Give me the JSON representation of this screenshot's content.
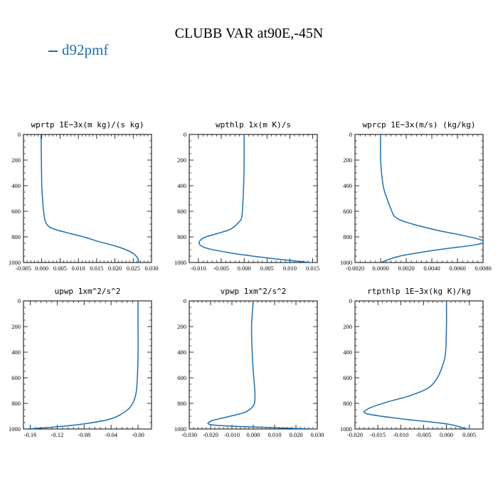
{
  "title": "CLUBB VAR at90E,-45N",
  "legend": {
    "series_name": "d92pmf",
    "color": "#1f6fb0"
  },
  "chart_data": [
    {
      "type": "line",
      "title": "wprtp   1E−3x(m kg)/(s kg)",
      "xlim": [
        -0.005,
        0.03
      ],
      "ylim": [
        1000,
        0
      ],
      "y_reversed": true,
      "xticks": [
        -0.005,
        0.0,
        0.005,
        0.01,
        0.015,
        0.02,
        0.025,
        0.03
      ],
      "xtick_labels": [
        "-0.005",
        "0.000",
        "0.005",
        "0.010",
        "0.015",
        "0.020",
        "0.025",
        "0.030"
      ],
      "yticks": [
        0,
        200,
        400,
        600,
        800,
        1000
      ],
      "ytick_labels": [
        "0",
        "200",
        "400",
        "600",
        "800",
        "1000"
      ],
      "series": [
        {
          "name": "d92pmf",
          "x": [
            -0.0002,
            -0.0001,
            0.0,
            0.0002,
            0.0005,
            0.001,
            0.002,
            0.004,
            0.008,
            0.012,
            0.016,
            0.02,
            0.023,
            0.025,
            0.0262,
            0.0265
          ],
          "y": [
            0,
            200,
            400,
            500,
            600,
            680,
            720,
            745,
            775,
            805,
            840,
            870,
            900,
            930,
            965,
            1000
          ]
        }
      ]
    },
    {
      "type": "line",
      "title": "wpthlp   1x(m K)/s",
      "xlim": [
        -0.012,
        0.016
      ],
      "ylim": [
        1000,
        0
      ],
      "y_reversed": true,
      "xticks": [
        -0.01,
        -0.005,
        0.0,
        0.005,
        0.01,
        0.015
      ],
      "xtick_labels": [
        "-0.010",
        "-0.005",
        "0.000",
        "0.005",
        "0.010",
        "0.015"
      ],
      "yticks": [
        0,
        200,
        400,
        600,
        800,
        1000
      ],
      "ytick_labels": [
        "0",
        "200",
        "400",
        "600",
        "800",
        "1000"
      ],
      "series": [
        {
          "name": "d92pmf",
          "x": [
            0.0,
            0.0,
            -0.0001,
            -0.0003,
            -0.0005,
            -0.001,
            -0.003,
            -0.006,
            -0.009,
            -0.0098,
            -0.008,
            -0.003,
            0.003,
            0.009,
            0.0145
          ],
          "y": [
            0,
            200,
            400,
            550,
            640,
            680,
            740,
            775,
            810,
            855,
            890,
            925,
            955,
            980,
            1000
          ]
        }
      ]
    },
    {
      "type": "line",
      "title": "wprcp   1E−3x(m/s) (kg/kg)",
      "xlim": [
        -0.002,
        0.008
      ],
      "ylim": [
        1000,
        0
      ],
      "y_reversed": true,
      "xticks": [
        -0.002,
        0.0,
        0.002,
        0.004,
        0.006,
        0.008
      ],
      "xtick_labels": [
        "-0.0020",
        "0.0000",
        "0.0020",
        "0.0040",
        "0.0060",
        "0.0080"
      ],
      "yticks": [
        0,
        200,
        400,
        600,
        800,
        1000
      ],
      "ytick_labels": [
        "0",
        "200",
        "400",
        "600",
        "800",
        "1000"
      ],
      "series": [
        {
          "name": "d92pmf",
          "x": [
            0.0,
            0.0,
            0.0002,
            0.0005,
            0.0008,
            0.0012,
            0.0025,
            0.0045,
            0.0065,
            0.008,
            0.0075,
            0.0045,
            0.0015,
            0.0
          ],
          "y": [
            0,
            200,
            400,
            500,
            580,
            650,
            700,
            750,
            790,
            830,
            860,
            900,
            950,
            1000
          ]
        }
      ]
    },
    {
      "type": "line",
      "title": "upwp   1xm^2/s^2",
      "xlim": [
        -0.17,
        0.02
      ],
      "ylim": [
        1000,
        0
      ],
      "y_reversed": true,
      "xticks": [
        -0.16,
        -0.12,
        -0.08,
        -0.04,
        0.0
      ],
      "xtick_labels": [
        "-0.16",
        "-0.12",
        "-0.08",
        "-0.04",
        "-0.00"
      ],
      "yticks": [
        0,
        200,
        400,
        600,
        800,
        1000
      ],
      "ytick_labels": [
        "0",
        "200",
        "400",
        "600",
        "800",
        "1000"
      ],
      "series": [
        {
          "name": "d92pmf",
          "x": [
            0.0,
            0.0,
            0.0,
            -0.001,
            -0.003,
            -0.008,
            -0.018,
            -0.04,
            -0.08,
            -0.125,
            -0.165
          ],
          "y": [
            0,
            200,
            400,
            600,
            720,
            800,
            860,
            920,
            960,
            985,
            1000
          ]
        }
      ]
    },
    {
      "type": "line",
      "title": "vpwp   1xm^2/s^2",
      "xlim": [
        -0.03,
        0.03
      ],
      "ylim": [
        1000,
        0
      ],
      "y_reversed": true,
      "xticks": [
        -0.03,
        -0.02,
        -0.01,
        0.0,
        0.01,
        0.02,
        0.03
      ],
      "xtick_labels": [
        "-0.030",
        "-0.020",
        "-0.010",
        "0.000",
        "0.010",
        "0.020",
        "0.030"
      ],
      "yticks": [
        0,
        200,
        400,
        600,
        800,
        1000
      ],
      "ytick_labels": [
        "0",
        "200",
        "400",
        "600",
        "800",
        "1000"
      ],
      "series": [
        {
          "name": "d92pmf",
          "x": [
            0.0,
            -0.0008,
            -0.0005,
            0.0,
            0.0005,
            0.0008,
            0.0,
            -0.004,
            -0.012,
            -0.02,
            -0.018,
            0.01,
            0.028
          ],
          "y": [
            0,
            200,
            400,
            550,
            650,
            750,
            820,
            870,
            905,
            940,
            970,
            990,
            1000
          ]
        }
      ]
    },
    {
      "type": "line",
      "title": "rtpthlp   1E−3x(kg K)/kg",
      "xlim": [
        -0.02,
        0.008
      ],
      "ylim": [
        1000,
        0
      ],
      "y_reversed": true,
      "xticks": [
        -0.02,
        -0.015,
        -0.01,
        -0.005,
        0.0,
        0.005
      ],
      "xtick_labels": [
        "-0.020",
        "-0.015",
        "-0.010",
        "-0.005",
        "0.000",
        "0.005"
      ],
      "yticks": [
        0,
        200,
        400,
        600,
        800,
        1000
      ],
      "ytick_labels": [
        "0",
        "200",
        "400",
        "600",
        "800",
        "1000"
      ],
      "series": [
        {
          "name": "d92pmf",
          "x": [
            0.0,
            0.0,
            -0.0002,
            -0.0008,
            -0.002,
            -0.004,
            -0.008,
            -0.013,
            -0.017,
            -0.0175,
            -0.01,
            0.0,
            0.0045
          ],
          "y": [
            0,
            200,
            400,
            500,
            600,
            680,
            740,
            790,
            840,
            880,
            920,
            960,
            1000
          ]
        }
      ]
    }
  ]
}
